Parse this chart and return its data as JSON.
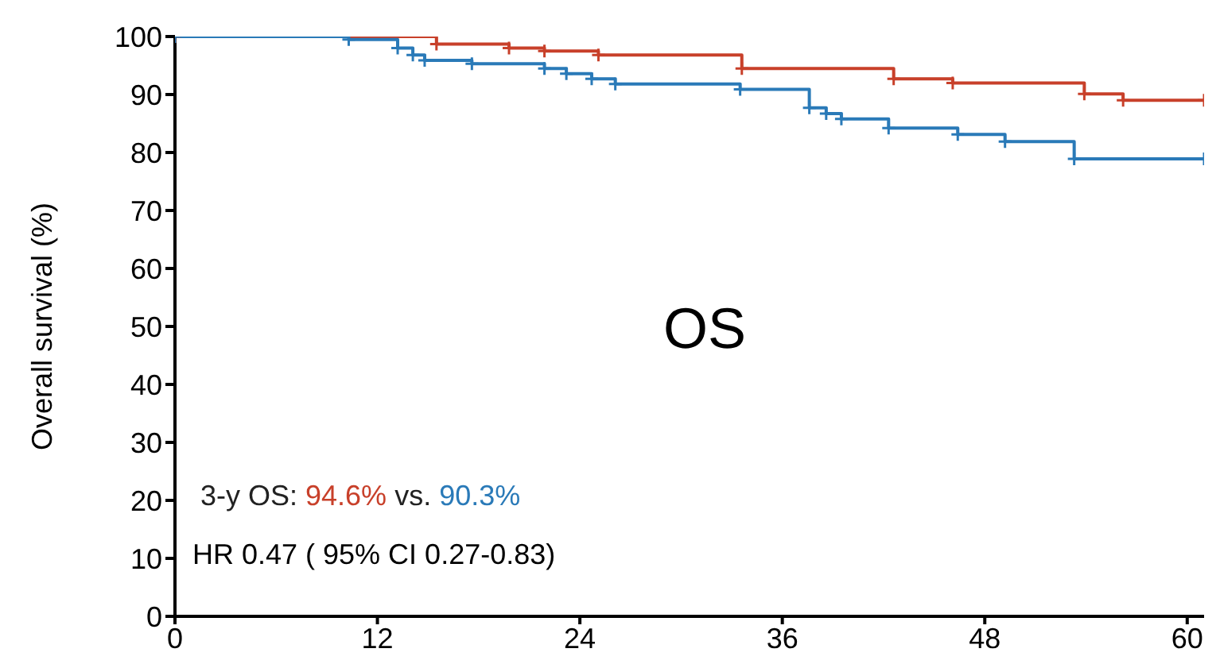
{
  "chart_data": {
    "type": "step",
    "ylabel": "Overall survival (%)",
    "xlim": [
      0,
      61
    ],
    "xticks": [
      0,
      12,
      24,
      36,
      48,
      60
    ],
    "ylim": [
      0,
      100
    ],
    "yticks": [
      0,
      10,
      20,
      30,
      40,
      50,
      60,
      70,
      80,
      90,
      100
    ],
    "legend": false,
    "marker": "cross",
    "line_style": "solid",
    "annotations": [
      "OS",
      "3-y OS: 94.6% vs. 90.3%",
      "HR 0.47 ( 95% CI 0.27-0.83)"
    ],
    "series": [
      {
        "color": "#c8402a",
        "x": [
          0,
          15.5,
          19.8,
          21.9,
          25.1,
          33.6,
          42.6,
          46.1,
          53.9,
          56.2,
          61
        ],
        "values": [
          100,
          98.7,
          98,
          97.5,
          96.8,
          94.5,
          92.7,
          92,
          90.1,
          89,
          89
        ]
      },
      {
        "color": "#2a7ab8",
        "x": [
          0,
          10.3,
          13.2,
          14.1,
          14.8,
          17.6,
          21.9,
          23.2,
          24.7,
          26.1,
          33.5,
          37.6,
          38.6,
          39.5,
          42.3,
          46.4,
          49.2,
          53.3,
          61
        ],
        "values": [
          100,
          99.5,
          98,
          96.8,
          95.9,
          95.3,
          94.5,
          93.6,
          92.7,
          91.8,
          90.9,
          87.7,
          86.7,
          85.8,
          84.2,
          83.1,
          81.9,
          78.9,
          78.9
        ]
      }
    ]
  }
}
